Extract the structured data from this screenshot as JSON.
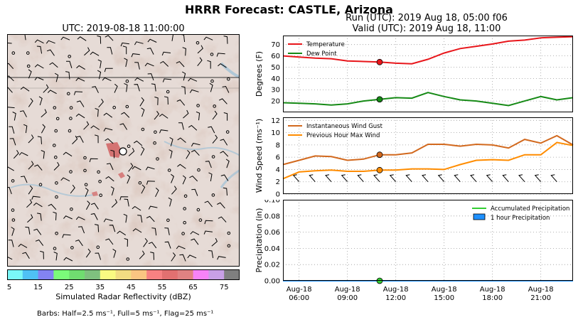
{
  "suptitle": "HRRR Forecast: CASTLE, Arizona",
  "map": {
    "title": "UTC: 2019-08-18 11:00:00",
    "colorbar": {
      "label": "Simulated Radar Reflectivity (dBZ)",
      "ticks": [
        "5",
        "15",
        "25",
        "35",
        "45",
        "55",
        "65",
        "75"
      ],
      "colors": [
        "#7af7f7",
        "#4fc1f5",
        "#8383f2",
        "#7bfb7a",
        "#70dd70",
        "#7fc07f",
        "#fafa82",
        "#f2dd82",
        "#fac582",
        "#f78182",
        "#e27070",
        "#e08282",
        "#f783f7",
        "#c8a0e6",
        "#7f7f7f"
      ]
    },
    "barbs_note": "Barbs: Half=2.5 ms⁻¹, Full=5 ms⁻¹, Flag=25 ms⁻¹"
  },
  "run_title": "Run (UTC): 2019 Aug 18, 05:00 f06",
  "valid_title": "Valid (UTC): 2019 Aug 18, 11:00",
  "chart_data": [
    {
      "type": "line",
      "ylabel": "Degrees (F)",
      "ylim": [
        10,
        78
      ],
      "yticks": [
        20,
        30,
        40,
        50,
        60,
        70
      ],
      "xlim": [
        5,
        23
      ],
      "grid": true,
      "legend_position": "top-left",
      "x": [
        5,
        6,
        7,
        8,
        9,
        10,
        11,
        12,
        13,
        14,
        15,
        16,
        17,
        18,
        19,
        20,
        21,
        22,
        23
      ],
      "series": [
        {
          "name": "Temperature",
          "color": "#e8161b",
          "values": [
            60,
            59,
            58,
            57.5,
            55.5,
            55,
            54.5,
            53.5,
            53,
            57,
            62.5,
            66.5,
            68.5,
            70.5,
            73,
            74,
            76,
            76.5,
            77
          ]
        },
        {
          "name": "Dew Point",
          "color": "#168a16",
          "values": [
            18.5,
            18,
            17.5,
            16.5,
            17.5,
            20,
            21.5,
            23,
            22.5,
            27.5,
            24,
            21,
            20,
            18,
            16,
            20,
            24,
            21,
            23
          ]
        }
      ],
      "markers": [
        {
          "x": 11,
          "series": 0
        },
        {
          "x": 11,
          "series": 1
        }
      ]
    },
    {
      "type": "line",
      "ylabel": "Wind Speed (ms⁻¹)",
      "ylim": [
        0,
        12.5
      ],
      "yticks": [
        0,
        2,
        4,
        6,
        8,
        10,
        12
      ],
      "xlim": [
        5,
        23
      ],
      "grid": true,
      "legend_position": "top-left",
      "x": [
        5,
        6,
        7,
        8,
        9,
        10,
        11,
        12,
        13,
        14,
        15,
        16,
        17,
        18,
        19,
        20,
        21,
        22,
        23
      ],
      "series": [
        {
          "name": "Instantaneous Wind Gust",
          "color": "#d2691e",
          "values": [
            4.8,
            5.5,
            6.2,
            6.1,
            5.5,
            5.7,
            6.4,
            6.4,
            6.7,
            8.1,
            8.1,
            7.8,
            8.1,
            8.0,
            7.5,
            8.9,
            8.3,
            9.5,
            8.0
          ]
        },
        {
          "name": "Previous Hour Max Wind",
          "color": "#ff8c00",
          "values": [
            2.5,
            3.6,
            3.8,
            3.9,
            3.7,
            3.7,
            3.9,
            3.9,
            4.1,
            4.1,
            4.0,
            4.8,
            5.5,
            5.6,
            5.5,
            6.4,
            6.4,
            8.4,
            7.9
          ]
        }
      ],
      "markers": [
        {
          "x": 11,
          "series": 0
        },
        {
          "x": 11,
          "series": 1
        }
      ]
    },
    {
      "type": "line",
      "ylabel": "Precipitation (in)",
      "ylim": [
        0,
        0.1
      ],
      "yticks": [
        "0.00",
        "0.02",
        "0.04",
        "0.06",
        "0.08",
        "0.10"
      ],
      "xlim": [
        5,
        23
      ],
      "grid": true,
      "legend_position": "top-right",
      "x": [
        5,
        6,
        7,
        8,
        9,
        10,
        11,
        12,
        13,
        14,
        15,
        16,
        17,
        18,
        19,
        20,
        21,
        22,
        23
      ],
      "series": [
        {
          "name": "Accumulated Precipitation",
          "color": "#32cd32",
          "values": [
            0,
            0,
            0,
            0,
            0,
            0,
            0,
            0,
            0,
            0,
            0,
            0,
            0,
            0,
            0,
            0,
            0,
            0,
            0
          ]
        },
        {
          "name": "1 hour Precipitation",
          "color": "#1e90ff",
          "values": [
            0,
            0,
            0,
            0,
            0,
            0,
            0,
            0,
            0,
            0,
            0,
            0,
            0,
            0,
            0,
            0,
            0,
            0,
            0
          ]
        }
      ],
      "markers": [
        {
          "x": 11,
          "series": 0
        }
      ],
      "xticks": [
        {
          "x": 6,
          "label": [
            "Aug-18",
            "06:00"
          ]
        },
        {
          "x": 9,
          "label": [
            "Aug-18",
            "09:00"
          ]
        },
        {
          "x": 12,
          "label": [
            "Aug-18",
            "12:00"
          ]
        },
        {
          "x": 15,
          "label": [
            "Aug-18",
            "15:00"
          ]
        },
        {
          "x": 18,
          "label": [
            "Aug-18",
            "18:00"
          ]
        },
        {
          "x": 21,
          "label": [
            "Aug-18",
            "21:00"
          ]
        }
      ]
    }
  ]
}
